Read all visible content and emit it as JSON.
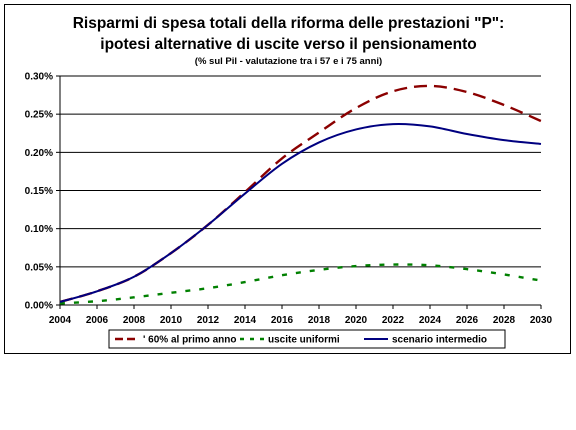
{
  "chart_data": {
    "type": "line",
    "title": "Risparmi di spesa totali della riforma delle prestazioni \"P\":",
    "title_line2": "ipotesi alternative di uscite verso il pensionamento",
    "subtitle": "(% sul Pil - valutazione tra i 57 e i 75 anni)",
    "xlabel": "",
    "ylabel": "",
    "x_ticks": [
      "2004",
      "2006",
      "2008",
      "2010",
      "2012",
      "2014",
      "2016",
      "2018",
      "2020",
      "2022",
      "2024",
      "2026",
      "2028",
      "2030"
    ],
    "y_ticks": [
      "0.00%",
      "0.05%",
      "0.10%",
      "0.15%",
      "0.20%",
      "0.25%",
      "0.30%"
    ],
    "xlim": [
      2004,
      2030
    ],
    "ylim": [
      0,
      0.3
    ],
    "grid": "horizontal",
    "legend_position": "bottom",
    "series": [
      {
        "name": "' 60% al primo anno",
        "color": "#8B0000",
        "style": "dashed",
        "x": [
          2004,
          2006,
          2008,
          2010,
          2012,
          2014,
          2016,
          2018,
          2020,
          2022,
          2024,
          2026,
          2028,
          2030
        ],
        "values": [
          0.004,
          0.018,
          0.037,
          0.068,
          0.105,
          0.148,
          0.192,
          0.226,
          0.258,
          0.28,
          0.287,
          0.279,
          0.262,
          0.241
        ]
      },
      {
        "name": "uscite uniformi",
        "color": "#008000",
        "style": "dotted",
        "x": [
          2004,
          2006,
          2008,
          2010,
          2012,
          2014,
          2016,
          2018,
          2020,
          2022,
          2024,
          2026,
          2028,
          2030
        ],
        "values": [
          0.002,
          0.005,
          0.01,
          0.016,
          0.022,
          0.03,
          0.039,
          0.046,
          0.051,
          0.053,
          0.052,
          0.047,
          0.04,
          0.032
        ]
      },
      {
        "name": "scenario intermedio",
        "color": "#000080",
        "style": "solid",
        "x": [
          2004,
          2006,
          2008,
          2010,
          2012,
          2014,
          2016,
          2018,
          2020,
          2022,
          2024,
          2026,
          2028,
          2030
        ],
        "values": [
          0.004,
          0.018,
          0.037,
          0.068,
          0.105,
          0.146,
          0.185,
          0.213,
          0.23,
          0.237,
          0.234,
          0.224,
          0.216,
          0.211
        ]
      }
    ]
  }
}
